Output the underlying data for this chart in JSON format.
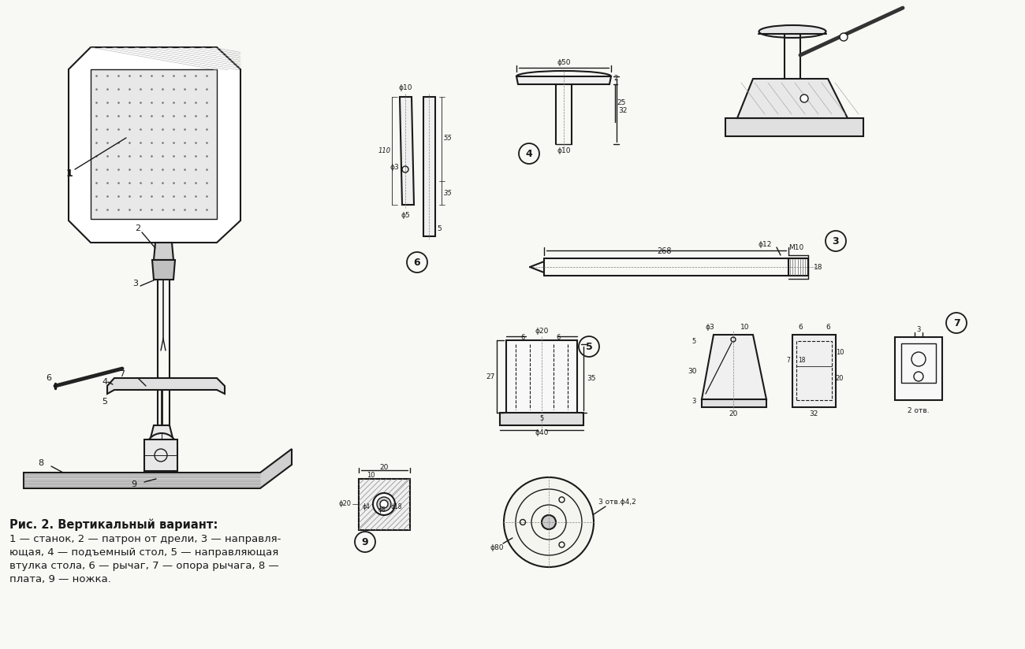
{
  "bg_color": "#f8f8f5",
  "line_color": "#1a1a1a",
  "title": "Рис. 2. Вертикальный вариант:",
  "caption_lines": [
    "1 — станок, 2 — патрон от дрели, 3 — направля-",
    "ющая, 4 — подъемный стол, 5 — направляющая",
    "втулка стола, 6 — рычаг, 7 — опора рычага, 8 —",
    "плата, 9 — ножка."
  ],
  "fig_width": 13.0,
  "fig_height": 8.24,
  "dpi": 100
}
